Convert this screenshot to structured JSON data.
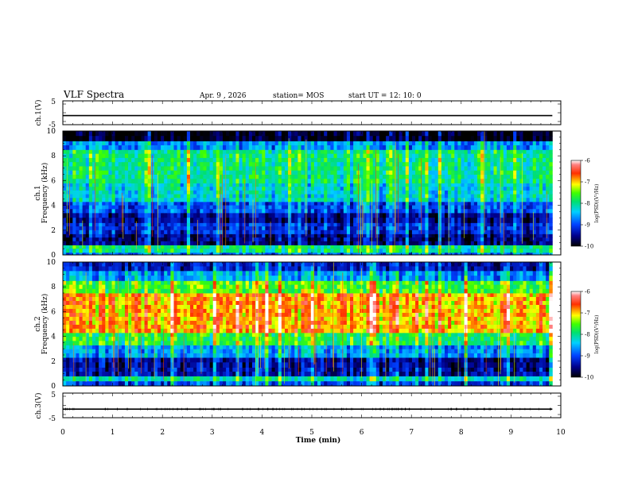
{
  "header": {
    "title": "VLF Spectra",
    "date": "Apr. 9 , 2026",
    "station": "station= MOS",
    "start": "start UT = 12: 10: 0"
  },
  "chart_data": [
    {
      "panel": "ch1-waveform",
      "type": "line",
      "ylabel": "ch.1(V)",
      "ylim": [
        -5,
        5
      ],
      "yticks": [
        "5",
        "-5"
      ],
      "xlim": [
        0,
        10
      ],
      "series": [
        {
          "x": [
            0,
            9.83
          ],
          "y": [
            -1.2,
            -1.2
          ]
        }
      ]
    },
    {
      "panel": "ch1-spectrogram",
      "type": "heatmap",
      "ylabel": "ch.1\nFrequency (kHz)",
      "ylim": [
        0,
        10
      ],
      "yticks": [
        "0",
        "2",
        "4",
        "6",
        "8",
        "10"
      ],
      "xlim": [
        0,
        10
      ],
      "bands": [
        {
          "f": [
            0,
            0.2
          ],
          "level": -8.8
        },
        {
          "f": [
            0.2,
            0.8
          ],
          "level": -8.0
        },
        {
          "f": [
            0.8,
            1.7
          ],
          "level": -9.6
        },
        {
          "f": [
            1.7,
            2.6
          ],
          "level": -9.2
        },
        {
          "f": [
            2.6,
            3.4
          ],
          "level": -9.5
        },
        {
          "f": [
            3.4,
            4.3
          ],
          "level": -9.0
        },
        {
          "f": [
            4.3,
            5.8
          ],
          "level": -8.3
        },
        {
          "f": [
            5.8,
            8.5
          ],
          "level": -8.0
        },
        {
          "f": [
            8.5,
            9.2
          ],
          "level": -8.7
        },
        {
          "f": [
            9.2,
            10.0
          ],
          "level": -10.0
        }
      ],
      "colorbar": {
        "label": "log(PSD)(V²/Hz)",
        "range": [
          -10,
          -6
        ],
        "ticks": [
          "-6",
          "-7",
          "-8",
          "-9",
          "-10"
        ]
      }
    },
    {
      "panel": "ch2-spectrogram",
      "type": "heatmap",
      "ylabel": "ch.2\nFrequency (kHz)",
      "ylim": [
        0,
        10
      ],
      "yticks": [
        "0",
        "2",
        "4",
        "6",
        "8",
        "10"
      ],
      "xlim": [
        0,
        10
      ],
      "bands": [
        {
          "f": [
            0,
            0.4
          ],
          "level": -9.0
        },
        {
          "f": [
            0.4,
            0.8
          ],
          "level": -8.2
        },
        {
          "f": [
            0.8,
            1.5
          ],
          "level": -9.4
        },
        {
          "f": [
            1.5,
            2.3
          ],
          "level": -9.5
        },
        {
          "f": [
            2.3,
            3.3
          ],
          "level": -8.6
        },
        {
          "f": [
            3.3,
            4.3
          ],
          "level": -7.8
        },
        {
          "f": [
            4.3,
            7.5
          ],
          "level": -6.9
        },
        {
          "f": [
            7.5,
            8.5
          ],
          "level": -7.6
        },
        {
          "f": [
            8.5,
            9.3
          ],
          "level": -8.6
        },
        {
          "f": [
            9.3,
            10.0
          ],
          "level": -9.3
        }
      ],
      "colorbar": {
        "label": "log(PSD)(V²/Hz)",
        "range": [
          -10,
          -6
        ],
        "ticks": [
          "-6",
          "-7",
          "-8",
          "-9",
          "-10"
        ]
      }
    },
    {
      "panel": "ch3-waveform",
      "type": "line",
      "ylabel": "ch.3(V)",
      "ylim": [
        -5,
        5
      ],
      "yticks": [
        "5",
        "-5"
      ],
      "xlim": [
        0,
        10
      ],
      "xlabel": "Time (min)",
      "xticks": [
        "0",
        "1",
        "2",
        "3",
        "4",
        "5",
        "6",
        "7",
        "8",
        "9",
        "10"
      ],
      "series": [
        {
          "x": [
            0,
            9.83
          ],
          "y": [
            -1.5,
            -1.5
          ]
        }
      ]
    }
  ]
}
